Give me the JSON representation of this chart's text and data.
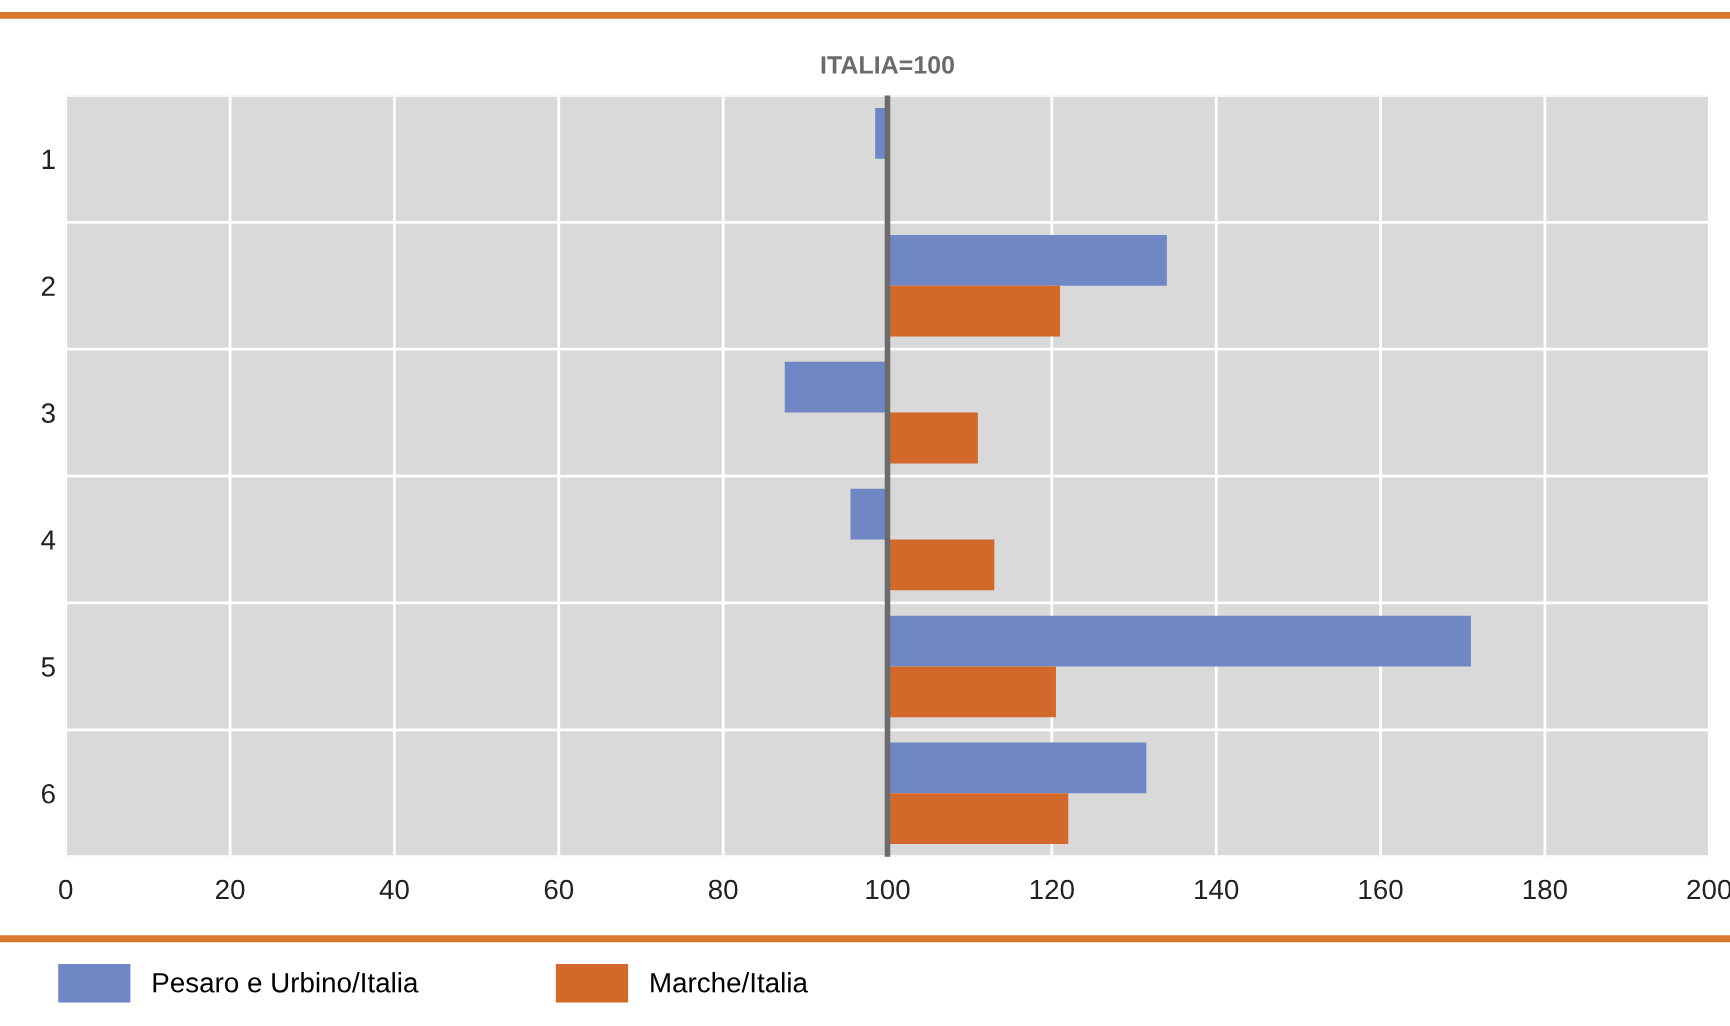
{
  "chart_data": {
    "type": "bar",
    "orientation": "horizontal",
    "categories": [
      "1",
      "2",
      "3",
      "4",
      "5",
      "6"
    ],
    "series": [
      {
        "name": "Pesaro e Urbino/Italia",
        "color": "#6f87c4",
        "base": [
          100,
          100,
          100,
          100,
          100,
          100
        ],
        "values": [
          -1.5,
          34,
          -12.5,
          -4.5,
          71,
          31.5
        ]
      },
      {
        "name": "Marche/Italia",
        "color": "#d2692a",
        "base": [
          null,
          100,
          100,
          100,
          100,
          100
        ],
        "values": [
          null,
          21,
          11,
          13,
          20.5,
          22
        ]
      }
    ],
    "xlim": [
      0,
      200
    ],
    "xticks": [
      0,
      20,
      40,
      60,
      80,
      100,
      120,
      140,
      160,
      180,
      200
    ],
    "ref_lines": [
      {
        "axis": "x",
        "value": 100,
        "label": "ITALIA=100",
        "color": "#6b6b6b"
      }
    ],
    "grid": true,
    "legend": "bottom left"
  }
}
